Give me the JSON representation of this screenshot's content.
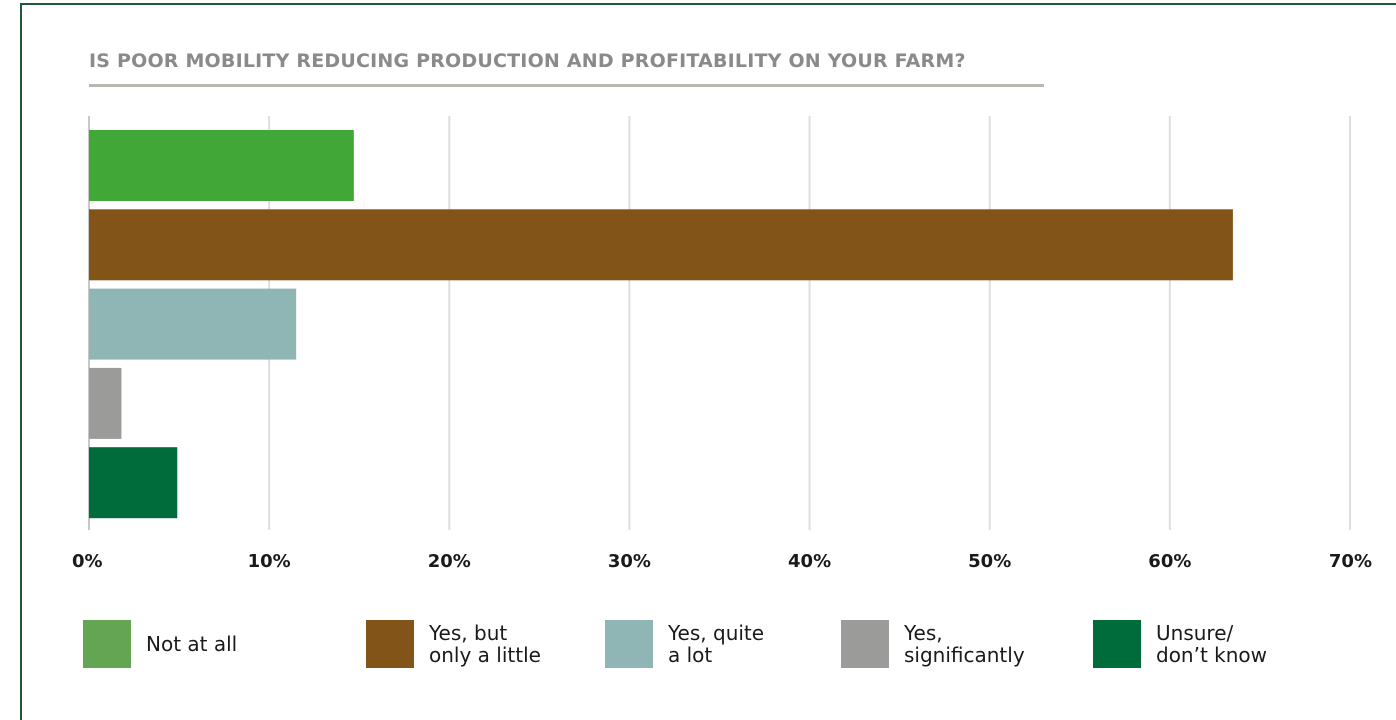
{
  "chart_data": {
    "type": "bar",
    "orientation": "horizontal",
    "title": "IS POOR MOBILITY REDUCING PRODUCTION AND PROFITABILITY ON YOUR FARM?",
    "categories": [
      "Not at all",
      "Yes, but\nonly a little",
      "Yes, quite\na lot",
      "Yes,\nsignificantly",
      "Unsure/\ndon’t know"
    ],
    "values": [
      14.7,
      63.5,
      11.5,
      1.8,
      4.9
    ],
    "colors": [
      "#41a737",
      "#835417",
      "#8fb6b5",
      "#9b9b99",
      "#006b3b"
    ],
    "legend_colors": [
      "#63a553",
      "#835417",
      "#8fb6b5",
      "#9b9b99",
      "#006b3b"
    ],
    "x_ticks": [
      "0%",
      "10%",
      "20%",
      "30%",
      "40%",
      "50%",
      "60%",
      "70%"
    ],
    "xlim": [
      0,
      70
    ],
    "unit": "%",
    "grid": true,
    "legend_position": "bottom"
  }
}
